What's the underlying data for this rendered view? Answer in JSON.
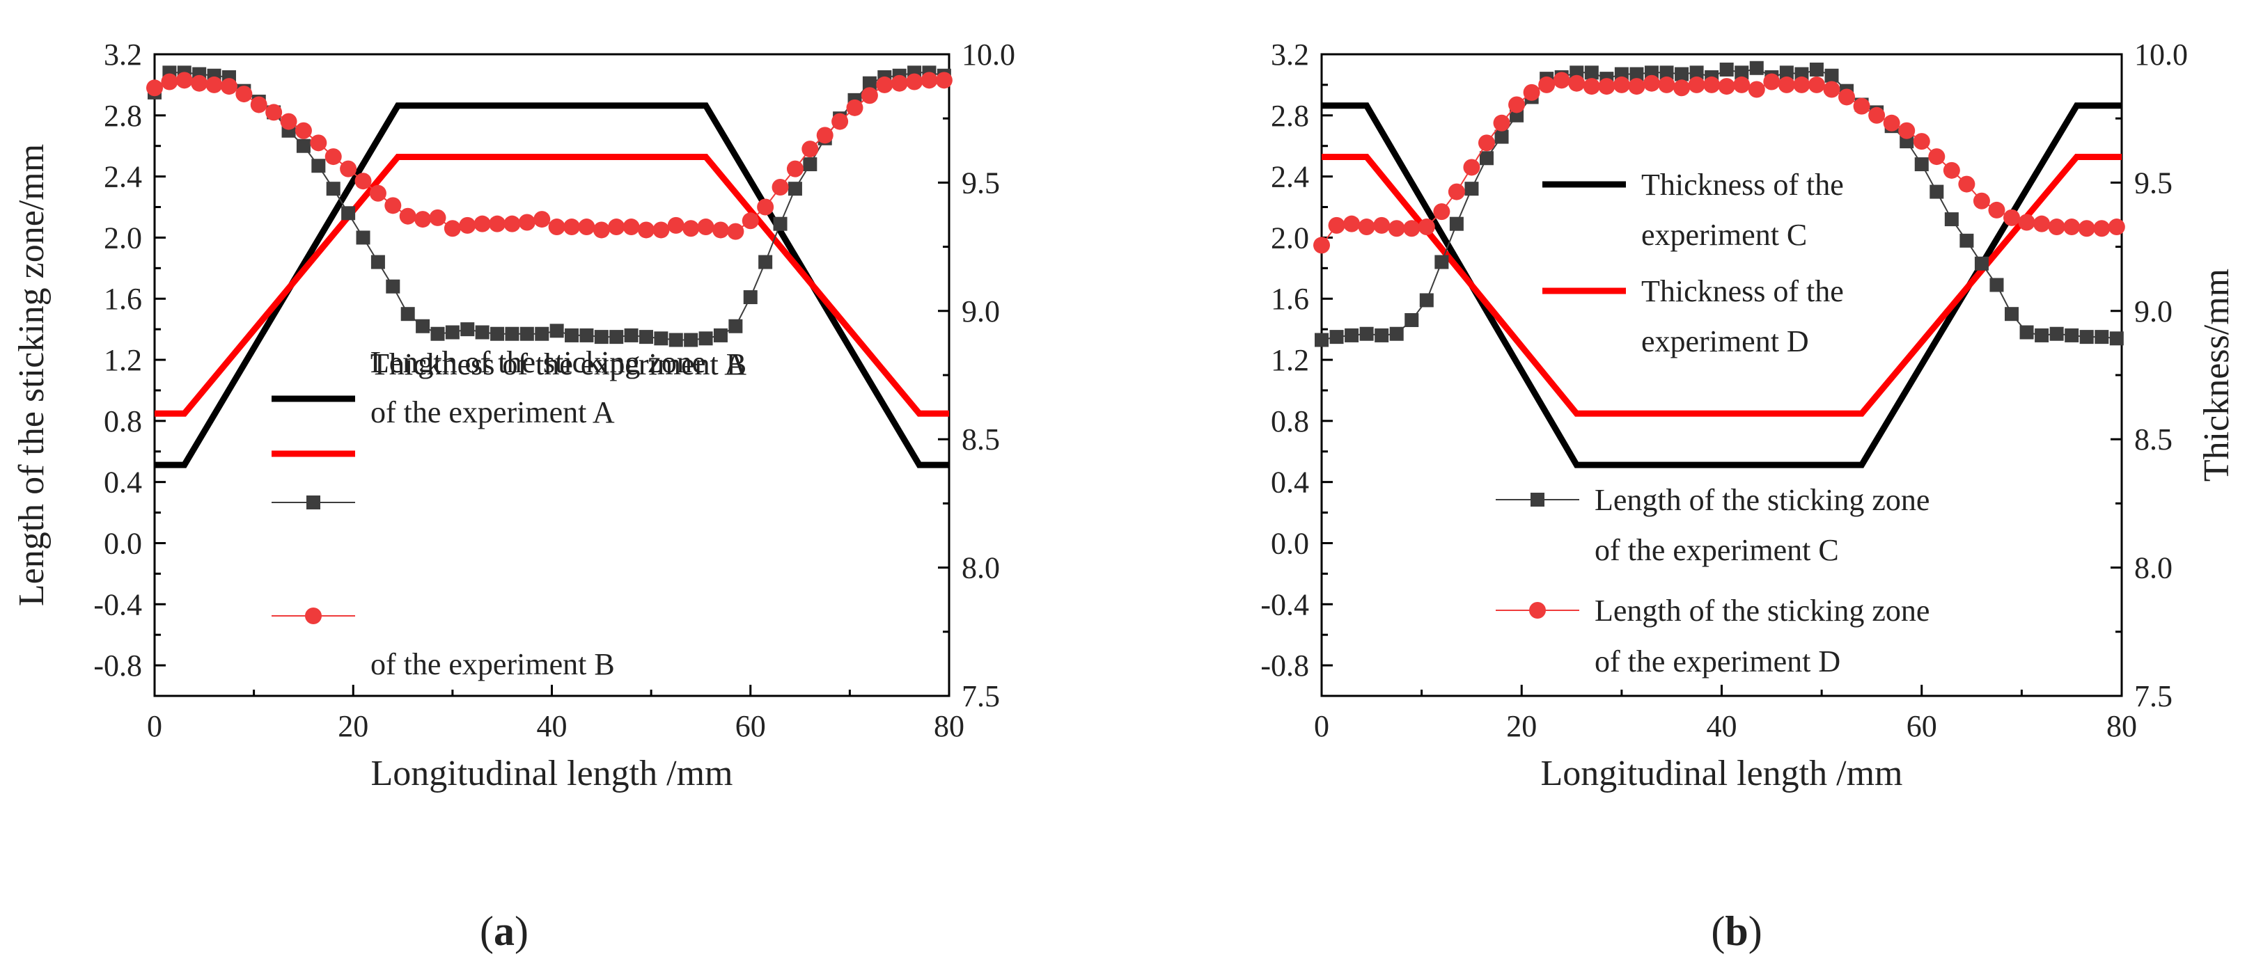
{
  "chart_data": [
    {
      "type": "line",
      "panel_label": "(a)",
      "xlabel": "Longitudinal length /mm",
      "ylabel_left": "Length of the sticking zone/mm",
      "ylabel_right": "",
      "xlim": [
        0,
        80
      ],
      "ylim_left": [
        -1.0,
        3.2
      ],
      "ylim_right": [
        7.5,
        10.0
      ],
      "x_ticks": [
        "0",
        "20",
        "40",
        "60",
        "80"
      ],
      "y_ticks_left": [
        "-0.8",
        "-0.4",
        "0.0",
        "0.4",
        "0.8",
        "1.2",
        "1.6",
        "2.0",
        "2.4",
        "2.8",
        "3.2"
      ],
      "y_ticks_right": [
        "7.5",
        "8.0",
        "8.5",
        "9.0",
        "9.5",
        "10.0"
      ],
      "legend": [
        {
          "lines": [
            "Thickness of the experiment A"
          ]
        },
        {
          "lines": [
            "Thickness of the experiment B"
          ]
        },
        {
          "lines": [
            "Length of the sticking zone",
            "of the experiment A"
          ]
        },
        {
          "lines": [
            "Length of the sticking zone",
            "of the experiment B"
          ]
        }
      ],
      "series": [
        {
          "axis": "right",
          "marker": "none",
          "color": "#000000",
          "x": [
            0,
            3,
            24.5,
            55.5,
            77,
            80
          ],
          "values": [
            8.4,
            8.4,
            9.8,
            9.8,
            8.4,
            8.4
          ]
        },
        {
          "axis": "right",
          "marker": "none",
          "color": "#ff0000",
          "x": [
            0,
            3,
            24.5,
            55.5,
            77,
            80
          ],
          "values": [
            8.6,
            8.6,
            9.6,
            9.6,
            8.6,
            8.6
          ]
        },
        {
          "axis": "left",
          "marker": "square",
          "color": "#3d3d3d",
          "x": [
            0,
            1.5,
            3,
            4.5,
            6,
            7.5,
            9,
            10.5,
            12,
            13.5,
            15,
            16.5,
            18,
            19.5,
            21,
            22.5,
            24,
            25.5,
            27,
            28.5,
            30,
            31.5,
            33,
            34.5,
            36,
            37.5,
            39,
            40.5,
            42,
            43.5,
            45,
            46.5,
            48,
            49.5,
            51,
            52.5,
            54,
            55.5,
            57,
            58.5,
            60,
            61.5,
            63,
            64.5,
            66,
            67.5,
            69,
            70.5,
            72,
            73.5,
            75,
            76.5,
            78,
            79.5
          ],
          "values": [
            2.95,
            3.08,
            3.08,
            3.07,
            3.06,
            3.05,
            2.96,
            2.89,
            2.82,
            2.7,
            2.6,
            2.47,
            2.32,
            2.16,
            2.0,
            1.84,
            1.68,
            1.5,
            1.42,
            1.37,
            1.38,
            1.4,
            1.38,
            1.37,
            1.37,
            1.37,
            1.37,
            1.39,
            1.36,
            1.36,
            1.35,
            1.35,
            1.36,
            1.35,
            1.34,
            1.33,
            1.33,
            1.34,
            1.36,
            1.42,
            1.61,
            1.84,
            2.09,
            2.32,
            2.48,
            2.65,
            2.78,
            2.9,
            3.01,
            3.05,
            3.06,
            3.08,
            3.08,
            3.06
          ]
        },
        {
          "axis": "left",
          "marker": "circle",
          "color": "#ef3b3b",
          "x": [
            0,
            1.5,
            3,
            4.5,
            6,
            7.5,
            9,
            10.5,
            12,
            13.5,
            15,
            16.5,
            18,
            19.5,
            21,
            22.5,
            24,
            25.5,
            27,
            28.5,
            30,
            31.5,
            33,
            34.5,
            36,
            37.5,
            39,
            40.5,
            42,
            43.5,
            45,
            46.5,
            48,
            49.5,
            51,
            52.5,
            54,
            55.5,
            57,
            58.5,
            60,
            61.5,
            63,
            64.5,
            66,
            67.5,
            69,
            70.5,
            72,
            73.5,
            75,
            76.5,
            78,
            79.5
          ],
          "values": [
            2.98,
            3.02,
            3.03,
            3.01,
            3.0,
            2.99,
            2.94,
            2.87,
            2.82,
            2.76,
            2.7,
            2.62,
            2.53,
            2.45,
            2.37,
            2.29,
            2.21,
            2.14,
            2.12,
            2.13,
            2.06,
            2.08,
            2.09,
            2.09,
            2.09,
            2.1,
            2.12,
            2.07,
            2.07,
            2.07,
            2.05,
            2.07,
            2.07,
            2.05,
            2.05,
            2.08,
            2.06,
            2.07,
            2.05,
            2.04,
            2.11,
            2.2,
            2.33,
            2.45,
            2.58,
            2.67,
            2.76,
            2.85,
            2.93,
            3.0,
            3.01,
            3.02,
            3.03,
            3.03
          ]
        }
      ]
    },
    {
      "type": "line",
      "panel_label": "(b)",
      "xlabel": "Longitudinal length /mm",
      "ylabel_left": "",
      "ylabel_right": "Thickness/mm",
      "xlim": [
        0,
        80
      ],
      "ylim_left": [
        -1.0,
        3.2
      ],
      "ylim_right": [
        7.5,
        10.0
      ],
      "x_ticks": [
        "0",
        "20",
        "40",
        "60",
        "80"
      ],
      "y_ticks_left": [
        "-0.8",
        "-0.4",
        "0.0",
        "0.4",
        "0.8",
        "1.2",
        "1.6",
        "2.0",
        "2.4",
        "2.8",
        "3.2"
      ],
      "y_ticks_right": [
        "7.5",
        "8.0",
        "8.5",
        "9.0",
        "9.5",
        "10.0"
      ],
      "legend": [
        {
          "lines": [
            "Thickness of the",
            "experiment C"
          ]
        },
        {
          "lines": [
            "Thickness of the",
            "experiment D"
          ]
        },
        {
          "lines": [
            "Length of the sticking zone",
            "of the experiment C"
          ]
        },
        {
          "lines": [
            "Length of the sticking zone",
            "of the experiment D"
          ]
        }
      ],
      "series": [
        {
          "axis": "right",
          "marker": "none",
          "color": "#000000",
          "x": [
            0,
            4.5,
            25.5,
            54,
            75.5,
            80
          ],
          "values": [
            9.8,
            9.8,
            8.4,
            8.4,
            9.8,
            9.8
          ]
        },
        {
          "axis": "right",
          "marker": "none",
          "color": "#ff0000",
          "x": [
            0,
            4.5,
            25.5,
            54,
            75.5,
            80
          ],
          "values": [
            9.6,
            9.6,
            8.6,
            8.6,
            9.6,
            9.6
          ]
        },
        {
          "axis": "left",
          "marker": "square",
          "color": "#3d3d3d",
          "x": [
            0,
            1.5,
            3,
            4.5,
            6,
            7.5,
            9,
            10.5,
            12,
            13.5,
            15,
            16.5,
            18,
            19.5,
            21,
            22.5,
            24,
            25.5,
            27,
            28.5,
            30,
            31.5,
            33,
            34.5,
            36,
            37.5,
            39,
            40.5,
            42,
            43.5,
            45,
            46.5,
            48,
            49.5,
            51,
            52.5,
            54,
            55.5,
            57,
            58.5,
            60,
            61.5,
            63,
            64.5,
            66,
            67.5,
            69,
            70.5,
            72,
            73.5,
            75,
            76.5,
            78,
            79.5
          ],
          "values": [
            1.33,
            1.35,
            1.36,
            1.37,
            1.36,
            1.37,
            1.46,
            1.59,
            1.84,
            2.09,
            2.32,
            2.52,
            2.66,
            2.8,
            2.92,
            3.04,
            3.05,
            3.08,
            3.08,
            3.04,
            3.07,
            3.07,
            3.08,
            3.08,
            3.07,
            3.08,
            3.05,
            3.1,
            3.08,
            3.11,
            3.05,
            3.08,
            3.07,
            3.1,
            3.06,
            2.96,
            2.87,
            2.82,
            2.73,
            2.63,
            2.48,
            2.3,
            2.12,
            1.98,
            1.83,
            1.69,
            1.5,
            1.38,
            1.36,
            1.37,
            1.36,
            1.35,
            1.35,
            1.34
          ]
        },
        {
          "axis": "left",
          "marker": "circle",
          "color": "#ef3b3b",
          "x": [
            0,
            1.5,
            3,
            4.5,
            6,
            7.5,
            9,
            10.5,
            12,
            13.5,
            15,
            16.5,
            18,
            19.5,
            21,
            22.5,
            24,
            25.5,
            27,
            28.5,
            30,
            31.5,
            33,
            34.5,
            36,
            37.5,
            39,
            40.5,
            42,
            43.5,
            45,
            46.5,
            48,
            49.5,
            51,
            52.5,
            54,
            55.5,
            57,
            58.5,
            60,
            61.5,
            63,
            64.5,
            66,
            67.5,
            69,
            70.5,
            72,
            73.5,
            75,
            76.5,
            78,
            79.5
          ],
          "values": [
            1.95,
            2.08,
            2.09,
            2.07,
            2.08,
            2.06,
            2.06,
            2.07,
            2.17,
            2.3,
            2.46,
            2.62,
            2.75,
            2.87,
            2.95,
            3.0,
            3.03,
            3.01,
            2.99,
            2.99,
            3.0,
            2.99,
            3.01,
            3.0,
            2.98,
            3.0,
            3.0,
            2.99,
            3.0,
            2.97,
            3.02,
            3.0,
            3.0,
            3.0,
            2.97,
            2.92,
            2.86,
            2.8,
            2.75,
            2.7,
            2.63,
            2.53,
            2.44,
            2.35,
            2.24,
            2.18,
            2.13,
            2.1,
            2.09,
            2.07,
            2.07,
            2.06,
            2.06,
            2.07
          ]
        }
      ]
    }
  ]
}
